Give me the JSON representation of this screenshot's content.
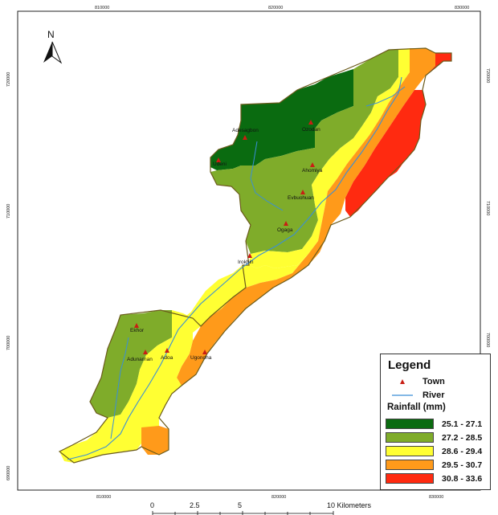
{
  "map": {
    "north_label": "N",
    "coords_top": [
      "810000",
      "820000",
      "830000"
    ],
    "coords_bottom": [
      "810000",
      "820000",
      "830000"
    ],
    "coords_left": [
      "720000",
      "710000",
      "700000",
      "690000"
    ],
    "coords_right": [
      "720000",
      "710000",
      "700000",
      "690000"
    ],
    "towns": [
      "Adesagbon",
      "Ozodan",
      "Udeni",
      "Ahomiya",
      "Evbuohuan",
      "Ogaga",
      "Irokhin",
      "Ekhor",
      "Adunarnan",
      "Adoa",
      "Ugonoha"
    ]
  },
  "legend": {
    "title": "Legend",
    "town_label": "Town",
    "river_label": "River",
    "rainfall_title": "Rainfall (mm)",
    "classes": [
      {
        "label": "25.1 - 27.1",
        "color": "#0a6b10"
      },
      {
        "label": "27.2 - 28.5",
        "color": "#7fac2a"
      },
      {
        "label": "28.6 - 29.4",
        "color": "#ffff33"
      },
      {
        "label": "29.5 - 30.7",
        "color": "#ff9a1a"
      },
      {
        "label": "30.8 - 33.6",
        "color": "#ff2a10"
      }
    ]
  },
  "scale_bar": {
    "ticks": [
      "0",
      "2.5",
      "5",
      "10 Kilometers"
    ]
  }
}
